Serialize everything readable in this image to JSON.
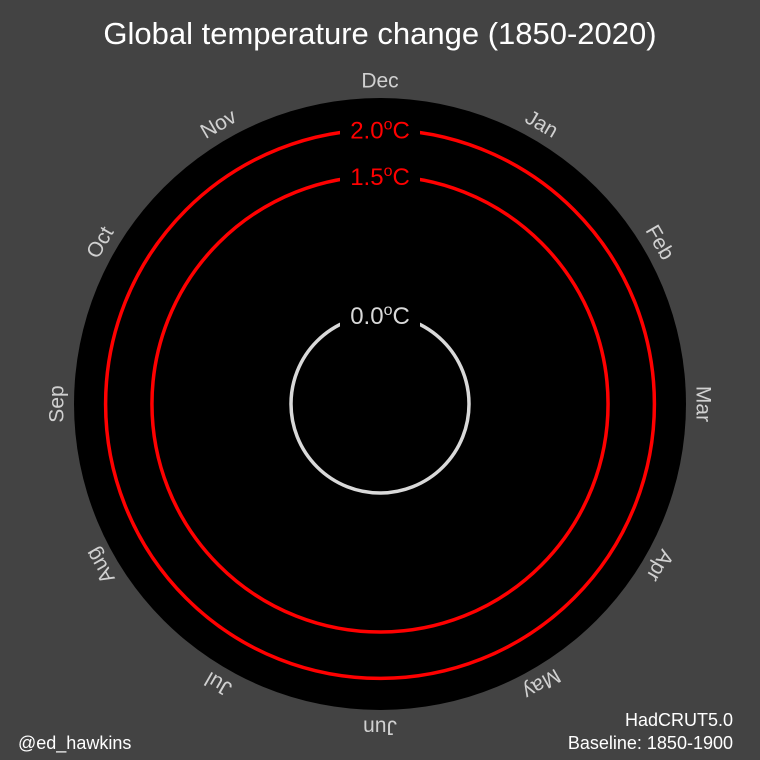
{
  "chart_data": {
    "type": "line",
    "projection": "polar",
    "title": "Global temperature change (1850-2020)",
    "angular_categories": [
      "Jan",
      "Feb",
      "Mar",
      "Apr",
      "May",
      "Jun",
      "Jul",
      "Aug",
      "Sep",
      "Oct",
      "Nov",
      "Dec"
    ],
    "radial_rings": [
      {
        "value": 0.0,
        "label": "0.0",
        "unit_sup": "o",
        "unit": "C",
        "color": "#d9d9d9"
      },
      {
        "value": 1.5,
        "label": "1.5",
        "unit_sup": "o",
        "unit": "C",
        "color": "#ff0000"
      },
      {
        "value": 2.0,
        "label": "2.0",
        "unit_sup": "o",
        "unit": "C",
        "color": "#ff0000"
      }
    ],
    "series": [],
    "grid": false,
    "colors": {
      "background": "#434343",
      "plot_area": "#000000",
      "text": "#ffffff",
      "month_text": "#d0d0d0"
    }
  },
  "footer": {
    "credit": "@ed_hawkins",
    "dataset": "HadCRUT5.0",
    "baseline": "Baseline: 1850-1900"
  }
}
